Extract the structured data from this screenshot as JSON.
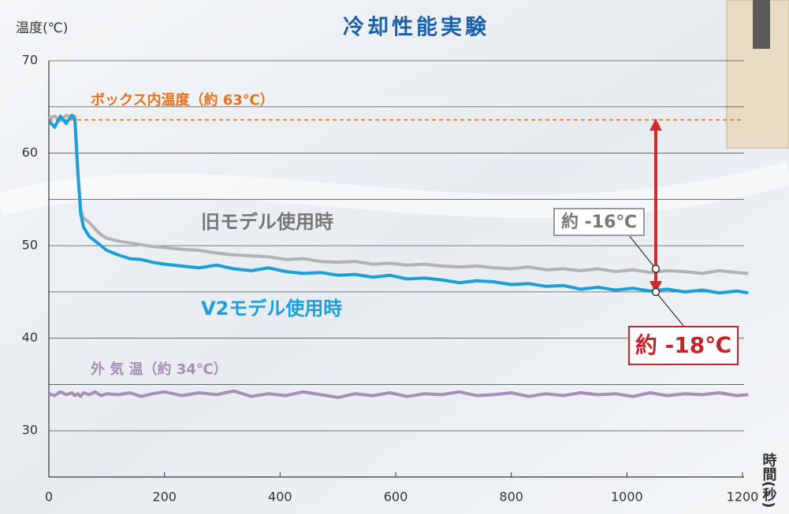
{
  "chart_data": {
    "type": "line",
    "title": "冷却性能実験",
    "y_label": "温度(℃)",
    "x_label": "時間(秒)",
    "xlim": [
      0,
      1230
    ],
    "ylim": [
      25,
      70
    ],
    "xticks": [
      0,
      200,
      400,
      600,
      800,
      1000,
      1200
    ],
    "yticks": [
      30,
      40,
      50,
      60,
      70
    ],
    "yminor_grid": [
      35,
      45,
      55,
      65
    ],
    "grid": true,
    "x": [
      0,
      10,
      20,
      30,
      40,
      45,
      50,
      55,
      60,
      70,
      80,
      90,
      100,
      120,
      140,
      160,
      180,
      200,
      230,
      260,
      290,
      320,
      350,
      380,
      410,
      440,
      470,
      500,
      530,
      560,
      590,
      620,
      650,
      680,
      710,
      740,
      770,
      800,
      830,
      860,
      890,
      920,
      950,
      980,
      1010,
      1040,
      1070,
      1100,
      1130,
      1160,
      1190,
      1210
    ],
    "series": [
      {
        "name": "旧モデル使用時",
        "color": "#b3b3b3",
        "values": [
          63.8,
          64.0,
          63.5,
          64.1,
          63.9,
          64.0,
          58,
          54,
          53,
          52.5,
          51.8,
          51.2,
          50.8,
          50.5,
          50.3,
          50.1,
          49.9,
          49.8,
          49.6,
          49.5,
          49.2,
          49.0,
          48.9,
          48.8,
          48.5,
          48.6,
          48.3,
          48.2,
          48.3,
          48.0,
          48.1,
          47.9,
          48.0,
          47.8,
          47.7,
          47.8,
          47.6,
          47.5,
          47.7,
          47.4,
          47.5,
          47.3,
          47.5,
          47.2,
          47.4,
          47.1,
          47.3,
          47.2,
          47.0,
          47.3,
          47.1,
          47.0
        ]
      },
      {
        "name": "V2モデル使用時",
        "color": "#1a9fd8",
        "values": [
          63.5,
          62.8,
          64.0,
          63.2,
          64.1,
          63.6,
          58,
          53.5,
          52,
          51,
          50.5,
          50.0,
          49.5,
          49.0,
          48.6,
          48.5,
          48.2,
          48.0,
          47.8,
          47.6,
          47.9,
          47.5,
          47.3,
          47.6,
          47.2,
          47.0,
          47.1,
          46.8,
          46.9,
          46.6,
          46.8,
          46.4,
          46.5,
          46.3,
          46.0,
          46.2,
          46.1,
          45.8,
          45.9,
          45.6,
          45.7,
          45.3,
          45.5,
          45.2,
          45.4,
          45.1,
          45.3,
          45.0,
          45.2,
          44.9,
          45.1,
          44.9
        ]
      },
      {
        "name": "外 気 温（約 34℃）",
        "color": "#a88db8",
        "values": [
          34.0,
          33.8,
          34.2,
          33.9,
          34.1,
          33.8,
          34.0,
          33.7,
          34.1,
          33.9,
          34.2,
          33.8,
          34.0,
          33.9,
          34.1,
          33.7,
          34.0,
          34.2,
          33.8,
          34.1,
          33.9,
          34.3,
          33.7,
          34.0,
          33.8,
          34.2,
          33.9,
          33.6,
          34.0,
          33.8,
          34.1,
          33.7,
          34.0,
          33.9,
          34.2,
          33.8,
          33.9,
          34.1,
          33.7,
          34.0,
          33.8,
          34.1,
          33.9,
          34.0,
          33.7,
          34.1,
          33.8,
          34.0,
          33.9,
          34.1,
          33.8,
          33.9
        ]
      }
    ],
    "reference": {
      "label": "ボックス内温度（約 63℃）",
      "value": 63.6,
      "color": "#e8701a"
    },
    "arrow": {
      "x": 1050,
      "y_from": 63.6,
      "y_to": 45,
      "color": "#d42a2a"
    },
    "markers": [
      {
        "x": 1050,
        "y": 47.5
      },
      {
        "x": 1050,
        "y": 45
      }
    ],
    "annotations": [
      "約 -16℃",
      "約 -18℃"
    ]
  }
}
